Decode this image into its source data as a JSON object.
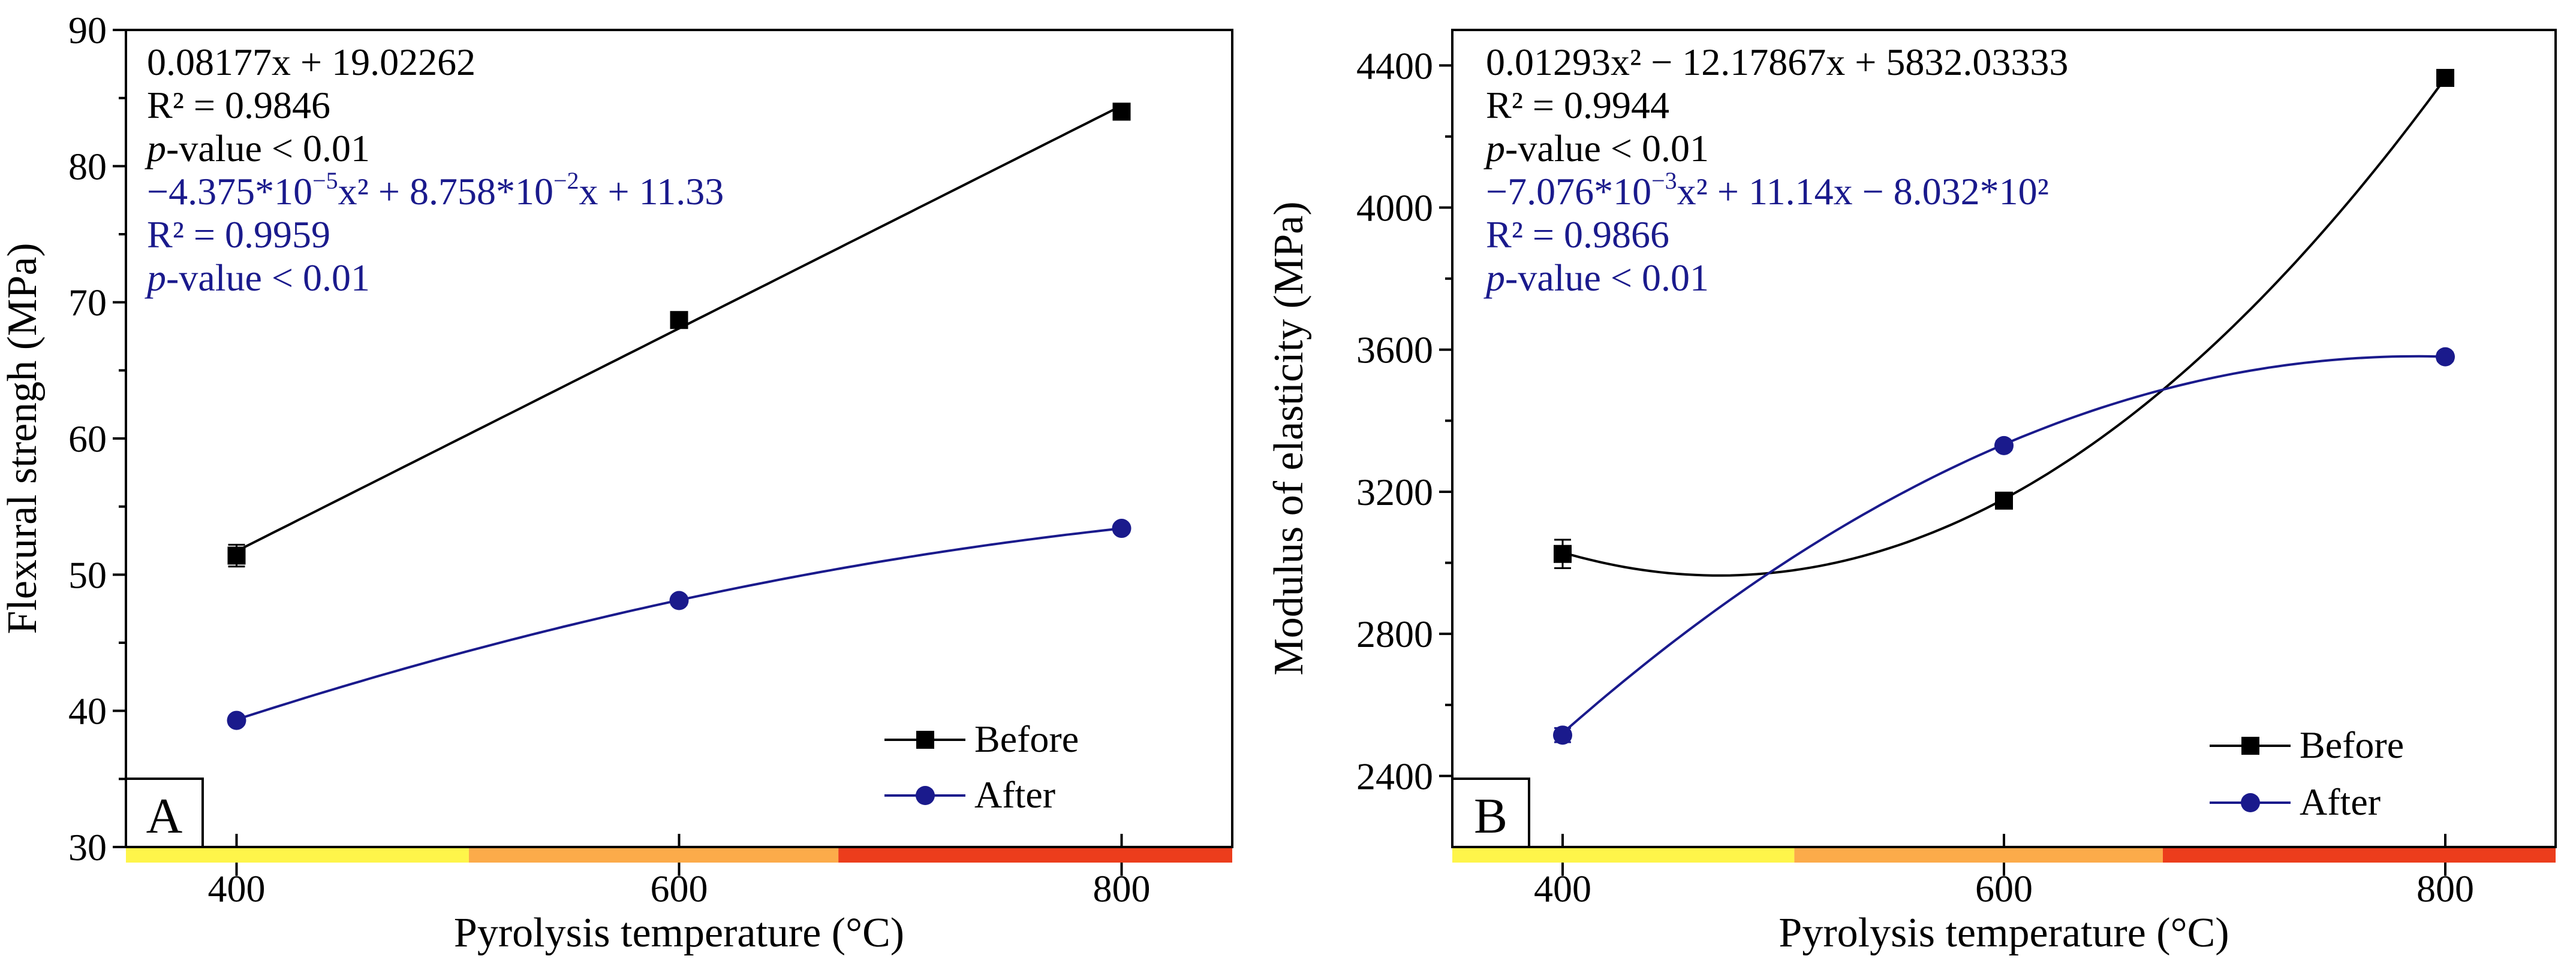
{
  "colors": {
    "before": "#000000",
    "after": "#1a1a8c",
    "band_yellow": "#fef54a",
    "band_orange": "#fcab4a",
    "band_red": "#ec3d1c"
  },
  "chart_data": [
    {
      "type": "line",
      "panel_label": "A",
      "xlabel": "Pyrolysis temperature (°C)",
      "ylabel": "Flexural strengh (MPa)",
      "xlim": [
        350,
        850
      ],
      "ylim": [
        30,
        90
      ],
      "x_ticks": [
        "400",
        "600",
        "800"
      ],
      "y_ticks": [
        "30",
        "40",
        "50",
        "60",
        "70",
        "80",
        "90"
      ],
      "temperature_bands": [
        {
          "from": 350,
          "to": 505,
          "color": "#fef54a"
        },
        {
          "from": 505,
          "to": 672,
          "color": "#fcab4a"
        },
        {
          "from": 672,
          "to": 850,
          "color": "#ec3d1c"
        }
      ],
      "series": [
        {
          "name": "Before",
          "marker": "square",
          "color": "#000000",
          "x": [
            400,
            600,
            800
          ],
          "y": [
            51.4,
            68.7,
            84.0
          ],
          "err": [
            0.8,
            0.3,
            0.3
          ],
          "fit": {
            "type": "linear",
            "c": [
              19.02262,
              0.08177
            ]
          }
        },
        {
          "name": "After",
          "marker": "circle",
          "color": "#1a1a8c",
          "x": [
            400,
            600,
            800
          ],
          "y": [
            39.3,
            48.1,
            53.4
          ],
          "err": [
            0.3,
            0.3,
            0.3
          ],
          "fit": {
            "type": "quadratic",
            "c": [
              11.33,
              0.08758,
              -4.375e-05
            ]
          }
        }
      ],
      "annotations_before": [
        "0.08177x + 19.02262",
        "R² = 0.9846",
        "-value < 0.01"
      ],
      "annotations_after": [
        "−4.375*10",
        "−5",
        "x² + 8.758*10",
        "−2",
        "x + 11.33",
        "R² = 0.9959",
        "-value < 0.01"
      ],
      "p_symbol": "p"
    },
    {
      "type": "line",
      "panel_label": "B",
      "xlabel": "Pyrolysis temperature (°C)",
      "ylabel": "Modulus of elasticity (MPa)",
      "xlim": [
        350,
        850
      ],
      "ylim": [
        2200,
        4500
      ],
      "x_ticks": [
        "400",
        "600",
        "800"
      ],
      "y_ticks": [
        "2400",
        "2800",
        "3200",
        "3600",
        "4000",
        "4400"
      ],
      "temperature_bands": [
        {
          "from": 350,
          "to": 505,
          "color": "#fef54a"
        },
        {
          "from": 505,
          "to": 672,
          "color": "#fcab4a"
        },
        {
          "from": 672,
          "to": 850,
          "color": "#ec3d1c"
        }
      ],
      "series": [
        {
          "name": "Before",
          "marker": "square",
          "color": "#000000",
          "x": [
            400,
            600,
            800
          ],
          "y": [
            3025,
            3175,
            4365
          ],
          "err": [
            40,
            12,
            12
          ],
          "fit": {
            "type": "quadratic",
            "c": [
              5832.03333,
              -12.17867,
              0.01293
            ]
          }
        },
        {
          "name": "After",
          "marker": "circle",
          "color": "#1a1a8c",
          "x": [
            400,
            600,
            800
          ],
          "y": [
            2515,
            3330,
            3580
          ],
          "err": [
            20,
            12,
            12
          ],
          "fit": {
            "type": "quadratic",
            "c": [
              -803.2,
              11.14,
              -0.007076
            ]
          }
        }
      ],
      "annotations_before": [
        "0.01293x² − 12.17867x + 5832.03333",
        "R² = 0.9944",
        "-value < 0.01"
      ],
      "annotations_after": [
        "−7.076*10",
        "−3",
        "x² + 11.14x − 8.032*10²",
        "R² = 0.9866",
        "-value < 0.01"
      ],
      "p_symbol": "p"
    }
  ],
  "legend": {
    "before": "Before",
    "after": "After"
  }
}
